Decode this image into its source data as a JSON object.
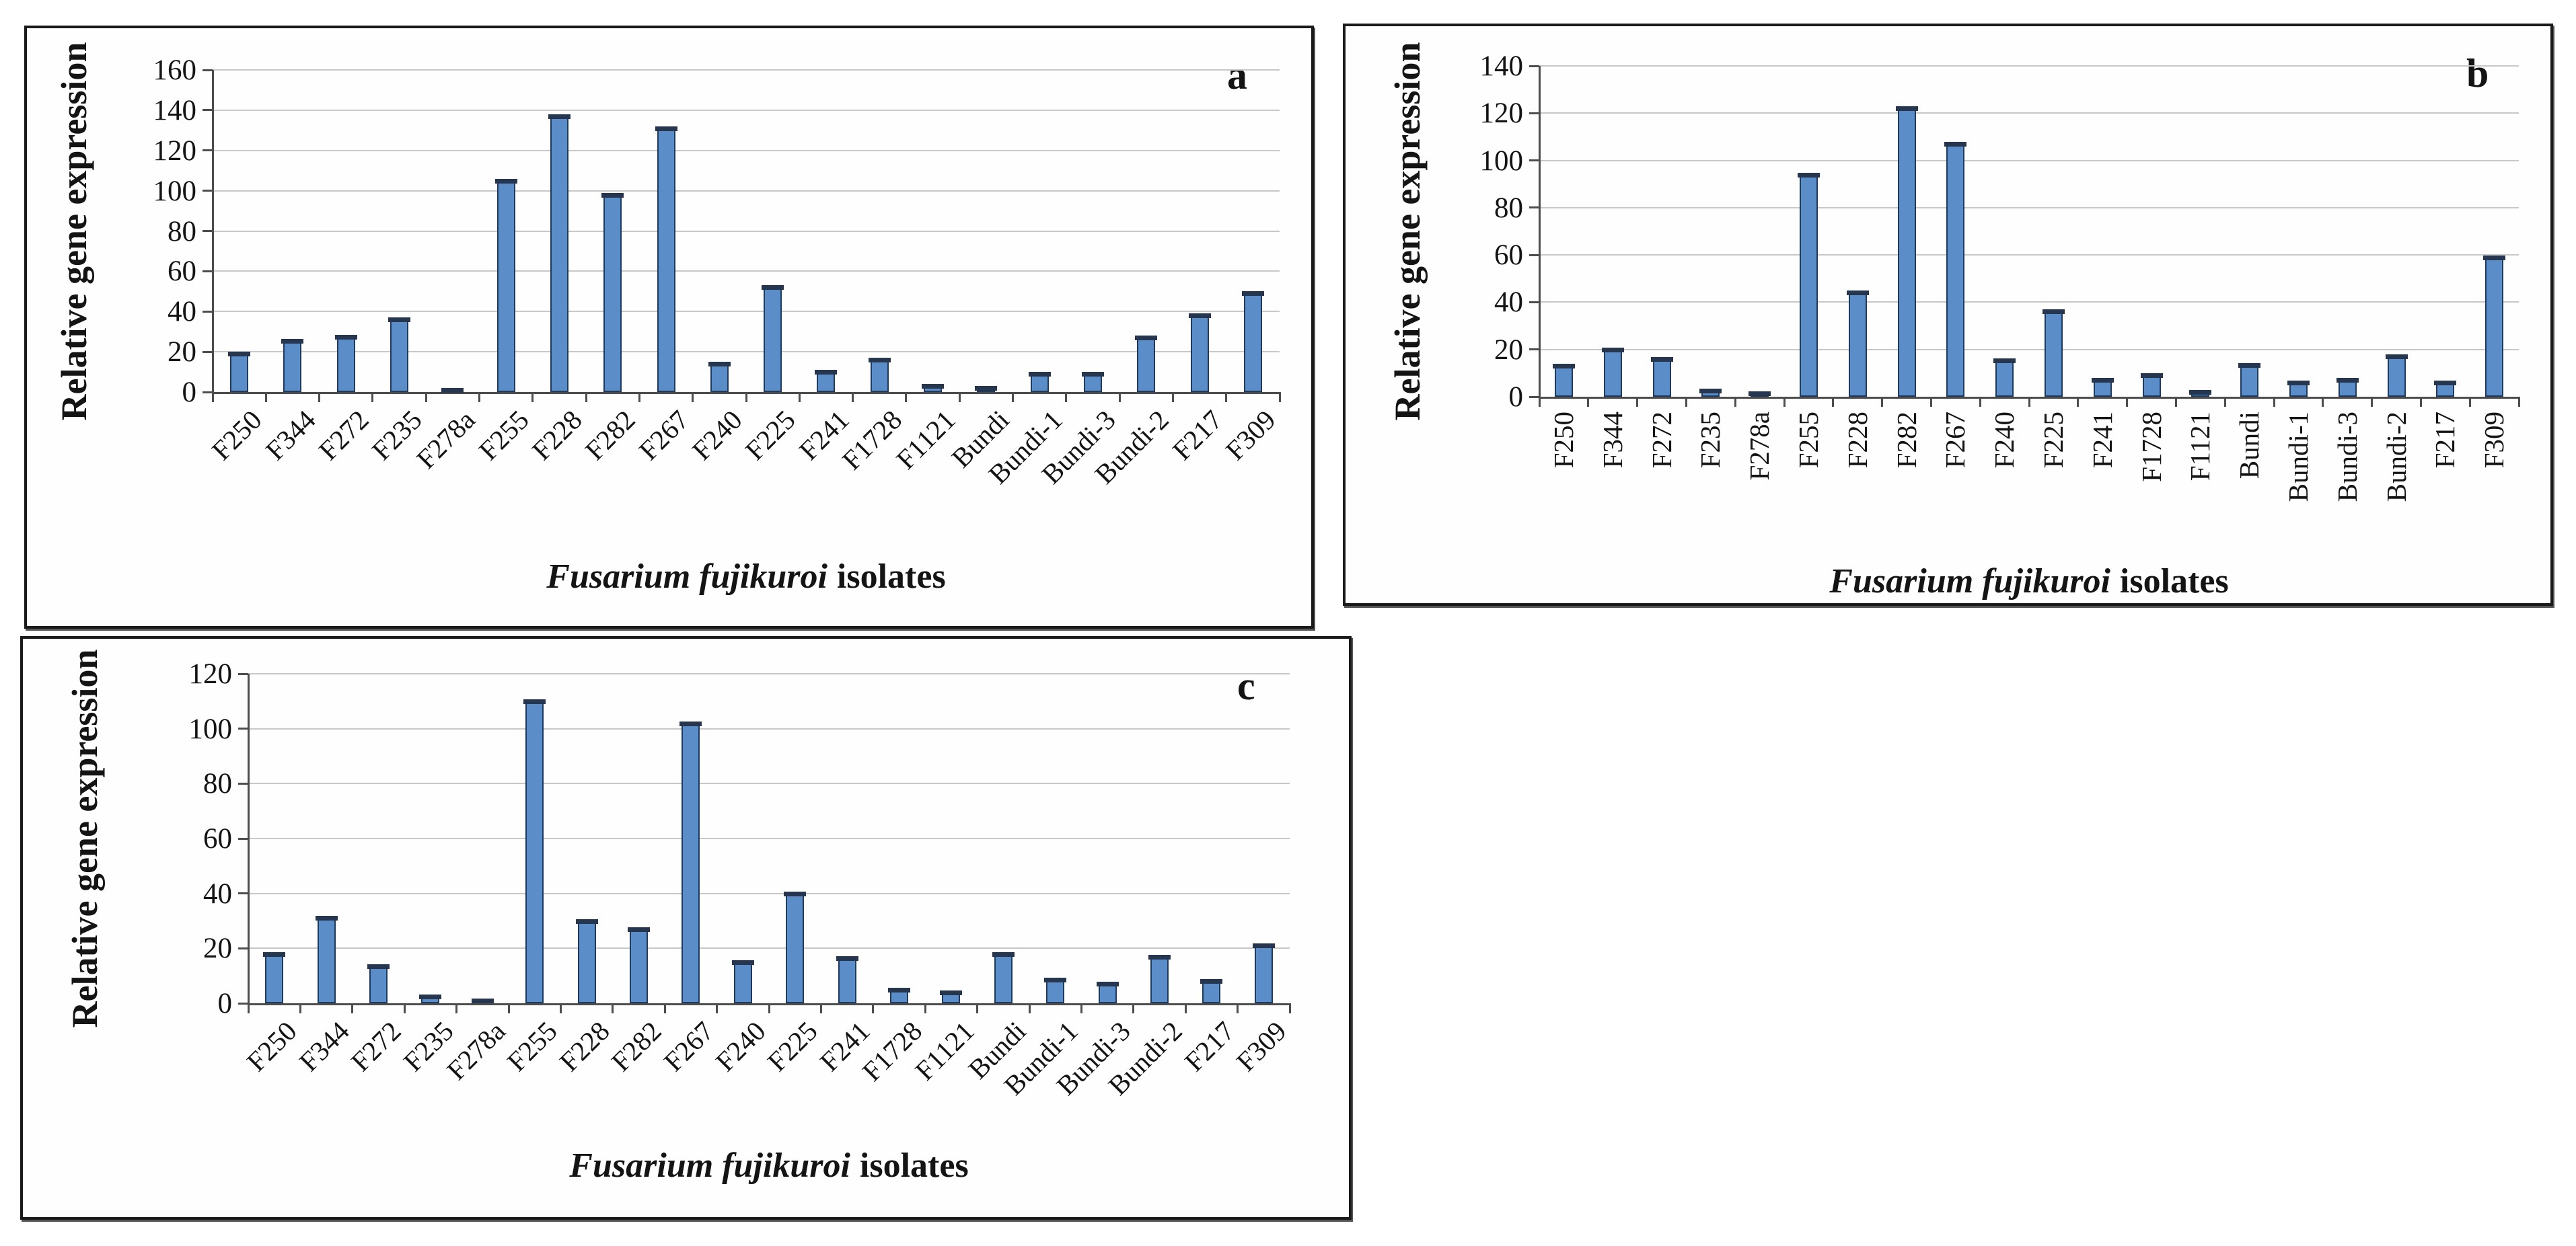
{
  "figure": {
    "background": "#ffffff",
    "ylabel": "Relative gene expression",
    "xlabel_italic": "Fusarium fujikuroi",
    "xlabel_plain": "isolates"
  },
  "colors": {
    "bar_fill": "#5B8EC9",
    "bar_border": "#1F3A5F",
    "error_cap": "#26364E",
    "gridline": "#C8C8C8",
    "axis": "#4D4D4D",
    "text": "#141414",
    "panel_border": "#1a1a1a",
    "panel_background": "#fefefe"
  },
  "chart_data": [
    {
      "type": "bar",
      "panel_label": "a",
      "ylabel": "Relative gene expression",
      "xlabel": "Fusarium fujikuroi isolates",
      "ylim": [
        0,
        160
      ],
      "ytick_step": 20,
      "grid": true,
      "error_caps": true,
      "legend": "none",
      "x_label_rotation": 45,
      "categories": [
        "F250",
        "F344",
        "F272",
        "F235",
        "F278a",
        "F255",
        "F228",
        "F282",
        "F267",
        "F240",
        "F225",
        "F241",
        "F1728",
        "F1121",
        "Bundi",
        "Bundi-1",
        "Bundi-3",
        "Bundi-2",
        "F217",
        "F309"
      ],
      "values": [
        19,
        25.5,
        27.5,
        36,
        1,
        105,
        137,
        98,
        131,
        14,
        52,
        10,
        16,
        3,
        2,
        9,
        9,
        27,
        38,
        49
      ]
    },
    {
      "type": "bar",
      "panel_label": "b",
      "ylabel": "Relative gene expression",
      "xlabel": "Fusarium fujikuroi isolates",
      "ylim": [
        0,
        140
      ],
      "ytick_step": 20,
      "grid": true,
      "error_caps": true,
      "legend": "none",
      "x_label_rotation": 90,
      "categories": [
        "F250",
        "F344",
        "F272",
        "F235",
        "F278a",
        "F255",
        "F228",
        "F282",
        "F267",
        "F240",
        "F225",
        "F241",
        "F1728",
        "F1121",
        "Bundi",
        "Bundi-1",
        "Bundi-3",
        "Bundi-2",
        "F217",
        "F309"
      ],
      "values": [
        13,
        20,
        16,
        2.5,
        1.5,
        94,
        44,
        122,
        107,
        15.5,
        36,
        7,
        9,
        2,
        13.5,
        6,
        7,
        17,
        6,
        59
      ]
    },
    {
      "type": "bar",
      "panel_label": "c",
      "ylabel": "Relative gene expression",
      "xlabel": "Fusarium fujikuroi isolates",
      "ylim": [
        0,
        120
      ],
      "ytick_step": 20,
      "grid": true,
      "error_caps": true,
      "legend": "none",
      "x_label_rotation": 45,
      "categories": [
        "F250",
        "F344",
        "F272",
        "F235",
        "F278a",
        "F255",
        "F228",
        "F282",
        "F267",
        "F240",
        "F225",
        "F241",
        "F1728",
        "F1121",
        "Bundi",
        "Bundi-1",
        "Bundi-3",
        "Bundi-2",
        "F217",
        "F309"
      ],
      "values": [
        18,
        31,
        13.5,
        2.5,
        1,
        110,
        30,
        27,
        102,
        15,
        40,
        16.5,
        5,
        4,
        18,
        8.5,
        7,
        17,
        8,
        21
      ]
    }
  ]
}
